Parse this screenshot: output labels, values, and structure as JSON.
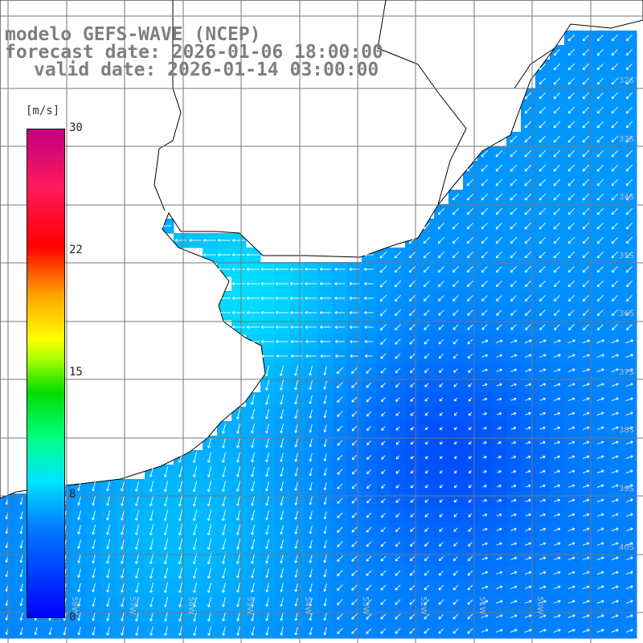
{
  "title": {
    "line1": "modelo GEFS-WAVE (NCEP)",
    "line2": "forecast date: 2026-01-06 18:00:00",
    "line3": "valid date: 2026-01-14 03:00:00"
  },
  "colorbar": {
    "unit": "[m/s]",
    "min": 0,
    "max": 30,
    "ticks": [
      "30",
      "22",
      "15",
      "8",
      "0"
    ],
    "tick_values": [
      30,
      22,
      15,
      8,
      0
    ]
  },
  "axes": {
    "lat_labels": [
      "32S",
      "33S",
      "34S",
      "35S",
      "36S",
      "37S",
      "38S",
      "39S",
      "40S"
    ],
    "lat_values": [
      32,
      33,
      34,
      35,
      36,
      37,
      38,
      39,
      40
    ],
    "lon_labels": [
      "58W",
      "57W",
      "56W",
      "55W",
      "54W",
      "53W",
      "52W",
      "51W",
      "50W"
    ],
    "lon_values": [
      58,
      57,
      56,
      55,
      54,
      53,
      52,
      51,
      50
    ]
  },
  "colors": {
    "grid": "#777777",
    "coast": "#000000",
    "arrows": "#ffffff",
    "labels": "#7f7f7f"
  },
  "legend_placement": "left"
}
